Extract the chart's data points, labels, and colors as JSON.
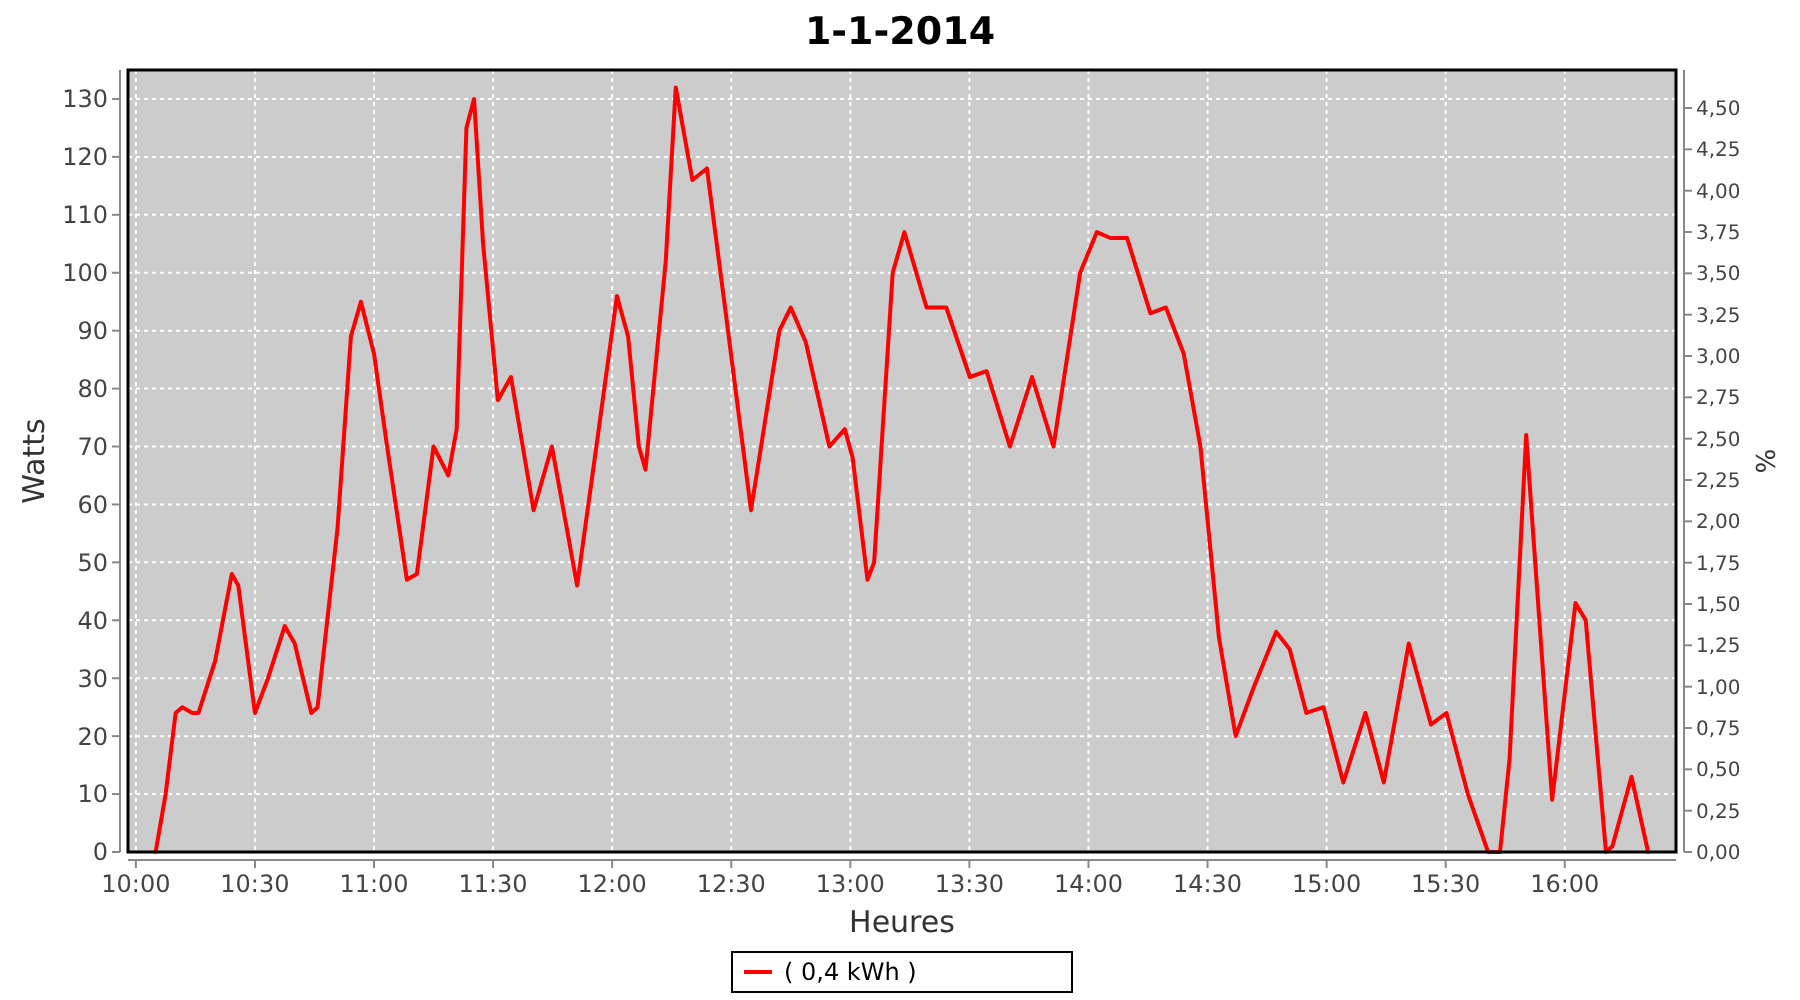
{
  "chart_data": {
    "type": "line",
    "title": "1-1-2014",
    "xlabel": "Heures",
    "ylabel": "Watts",
    "y2label": "%",
    "xlim": [
      9.967,
      16.467
    ],
    "ylim": [
      0,
      135
    ],
    "y2lim": [
      0,
      4.73
    ],
    "xticks": [
      {
        "value": 10,
        "label": "10:00"
      },
      {
        "value": 10.5,
        "label": "10:30"
      },
      {
        "value": 11,
        "label": "11:00"
      },
      {
        "value": 11.5,
        "label": "11:30"
      },
      {
        "value": 12,
        "label": "12:00"
      },
      {
        "value": 12.5,
        "label": "12:30"
      },
      {
        "value": 13,
        "label": "13:00"
      },
      {
        "value": 13.5,
        "label": "13:30"
      },
      {
        "value": 14,
        "label": "14:00"
      },
      {
        "value": 14.5,
        "label": "14:30"
      },
      {
        "value": 15,
        "label": "15:00"
      },
      {
        "value": 15.5,
        "label": "15:30"
      },
      {
        "value": 16,
        "label": "16:00"
      }
    ],
    "yticks": [
      0,
      10,
      20,
      30,
      40,
      50,
      60,
      70,
      80,
      90,
      100,
      110,
      120,
      130
    ],
    "y2ticks": [
      {
        "value": 0,
        "label": "0,00"
      },
      {
        "value": 0.25,
        "label": "0,25"
      },
      {
        "value": 0.5,
        "label": "0,50"
      },
      {
        "value": 0.75,
        "label": "0,75"
      },
      {
        "value": 1,
        "label": "1,00"
      },
      {
        "value": 1.25,
        "label": "1,25"
      },
      {
        "value": 1.5,
        "label": "1,50"
      },
      {
        "value": 1.75,
        "label": "1,75"
      },
      {
        "value": 2,
        "label": "2,00"
      },
      {
        "value": 2.25,
        "label": "2,25"
      },
      {
        "value": 2.5,
        "label": "2,50"
      },
      {
        "value": 2.75,
        "label": "2,75"
      },
      {
        "value": 3,
        "label": "3,00"
      },
      {
        "value": 3.25,
        "label": "3,25"
      },
      {
        "value": 3.5,
        "label": "3,50"
      },
      {
        "value": 3.75,
        "label": "3,75"
      },
      {
        "value": 4,
        "label": "4,00"
      },
      {
        "value": 4.25,
        "label": "4,25"
      },
      {
        "value": 4.5,
        "label": "4,50"
      }
    ],
    "grid": true,
    "legend": "bottom",
    "series": [
      {
        "name": "( 0,4 kWh )",
        "color": "#ff0000",
        "x": [
          10.083,
          10.125,
          10.167,
          10.195,
          10.237,
          10.263,
          10.333,
          10.403,
          10.43,
          10.5,
          10.555,
          10.625,
          10.667,
          10.737,
          10.763,
          10.847,
          10.903,
          10.945,
          11,
          11.055,
          11.138,
          11.18,
          11.25,
          11.312,
          11.347,
          11.388,
          11.42,
          11.458,
          11.52,
          11.575,
          11.67,
          11.747,
          11.853,
          11.937,
          12.02,
          12.067,
          12.112,
          12.14,
          12.225,
          12.267,
          12.337,
          12.398,
          12.477,
          12.583,
          12.702,
          12.75,
          12.813,
          12.912,
          12.977,
          13.01,
          13.072,
          13.1,
          13.178,
          13.227,
          13.32,
          13.403,
          13.502,
          13.572,
          13.67,
          13.763,
          13.853,
          13.965,
          14.035,
          14.092,
          14.162,
          14.26,
          14.325,
          14.4,
          14.47,
          14.548,
          14.618,
          14.69,
          14.788,
          14.845,
          14.915,
          14.987,
          15.07,
          15.163,
          15.24,
          15.345,
          15.438,
          15.503,
          15.593,
          15.678,
          15.728,
          15.768,
          15.838,
          15.862,
          15.947,
          16.045,
          16.088,
          16.173,
          16.2,
          16.28,
          16.35
        ],
        "values": [
          0,
          10,
          24,
          25,
          24,
          24,
          33,
          48,
          46,
          24,
          30,
          39,
          36,
          24,
          25,
          56,
          89,
          95,
          86,
          70,
          47,
          48,
          70,
          65,
          73,
          125,
          130,
          105,
          78,
          82,
          59,
          70,
          46,
          71,
          96,
          89,
          70,
          66,
          102,
          132,
          116,
          118,
          93,
          59,
          90,
          94,
          88,
          70,
          73,
          68,
          47,
          50,
          100,
          107,
          94,
          94,
          82,
          83,
          70,
          82,
          70,
          100,
          107,
          106,
          106,
          93,
          94,
          86,
          70,
          37,
          20,
          28,
          38,
          35,
          24,
          25,
          12,
          24,
          12,
          36,
          22,
          24,
          10,
          0,
          0,
          16,
          72,
          58,
          9,
          43,
          40,
          0,
          1,
          13,
          0
        ]
      }
    ]
  }
}
